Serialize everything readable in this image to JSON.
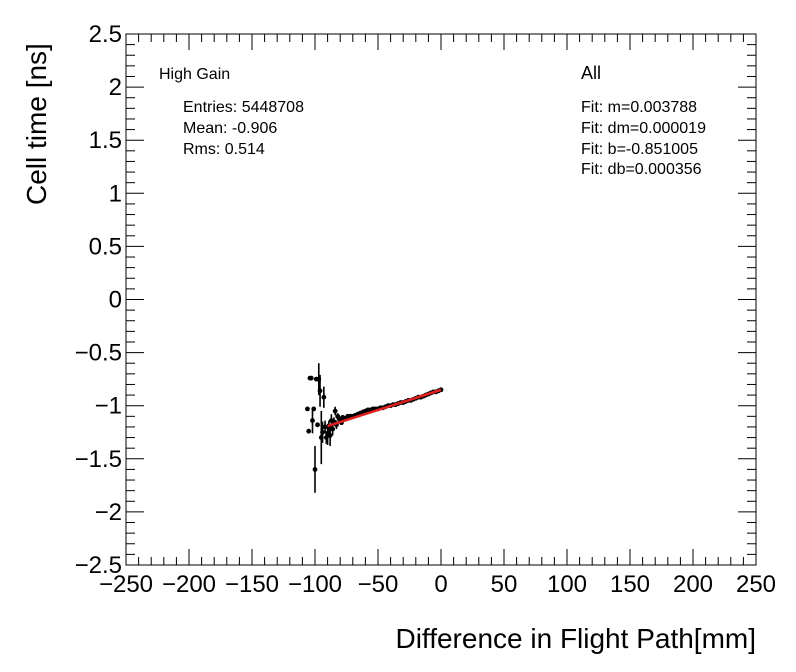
{
  "chart_data": {
    "type": "scatter",
    "xlabel": "Difference in Flight Path[mm]",
    "ylabel": "Cell time [ns]",
    "xlim": [
      -250,
      250
    ],
    "ylim": [
      -2.5,
      2.5
    ],
    "x_ticks": [
      "−250",
      "−200",
      "−150",
      "−100",
      "−50",
      "0",
      "50",
      "100",
      "150",
      "200",
      "250"
    ],
    "y_ticks": [
      "2.5",
      "2",
      "1.5",
      "1",
      "0.5",
      "0",
      "−0.5",
      "−1",
      "−1.5",
      "−2",
      "−2.5"
    ],
    "grid": false,
    "legend": "none",
    "annotations": {
      "gain": "High Gain",
      "entries": "Entries: 5448708",
      "mean": "Mean: -0.906",
      "rms": "Rms: 0.514",
      "selection": "All",
      "fit_m": "Fit: m=0.003788",
      "fit_dm": "Fit: dm=0.000019",
      "fit_b": "Fit: b=-0.851005",
      "fit_db": "Fit: db=0.000356"
    },
    "points": {
      "x": [
        -106,
        -105,
        -104,
        -103,
        -102,
        -101,
        -100,
        -99,
        -98,
        -97,
        -96,
        -95,
        -94,
        -93,
        -92,
        -91,
        -90,
        -89,
        -88,
        -87,
        -86,
        -85,
        -84,
        -83,
        -82,
        -81,
        -80,
        -79,
        -78,
        -77,
        -76,
        -75,
        -74,
        -73,
        -72,
        -71,
        -70,
        -68,
        -66,
        -64,
        -62,
        -60,
        -58,
        -56,
        -54,
        -52,
        -50,
        -48,
        -46,
        -44,
        -42,
        -40,
        -38,
        -36,
        -34,
        -32,
        -30,
        -28,
        -26,
        -24,
        -22,
        -20,
        -18,
        -16,
        -14,
        -12,
        -10,
        -8,
        -6,
        -4,
        -2,
        0
      ],
      "y": [
        -1.03,
        -1.24,
        -0.74,
        -0.74,
        -1.14,
        -1.03,
        -1.6,
        -0.75,
        -1.18,
        -0.75,
        -0.86,
        -1.3,
        -1.25,
        -0.92,
        -1.2,
        -1.3,
        -1.27,
        -1.2,
        -1.28,
        -1.14,
        -1.22,
        -1.15,
        -1.05,
        -1.18,
        -1.1,
        -1.12,
        -1.14,
        -1.16,
        -1.11,
        -1.13,
        -1.12,
        -1.12,
        -1.1,
        -1.11,
        -1.1,
        -1.1,
        -1.1,
        -1.09,
        -1.08,
        -1.07,
        -1.06,
        -1.05,
        -1.04,
        -1.04,
        -1.03,
        -1.03,
        -1.03,
        -1.02,
        -1.02,
        -1.01,
        -1.0,
        -1.0,
        -0.99,
        -0.99,
        -0.98,
        -0.97,
        -0.97,
        -0.96,
        -0.95,
        -0.95,
        -0.94,
        -0.93,
        -0.92,
        -0.92,
        -0.91,
        -0.9,
        -0.89,
        -0.88,
        -0.87,
        -0.87,
        -0.86,
        -0.85
      ],
      "yerr": [
        0.0,
        0.0,
        0.0,
        0.0,
        0.12,
        0.0,
        0.22,
        0.0,
        0.0,
        0.15,
        0.15,
        0.25,
        0.1,
        0.1,
        0.06,
        0.06,
        0.1,
        0.06,
        0.1,
        0.06,
        0.06,
        0.04,
        0.04,
        0.04,
        0.03,
        0.03,
        0.02,
        0.02,
        0.02,
        0.02,
        0.01,
        0.01,
        0.01,
        0.01,
        0.01,
        0.01,
        0.01,
        0.01,
        0.01,
        0.01,
        0.01,
        0.01,
        0.01,
        0.01,
        0.01,
        0.01,
        0.01,
        0.01,
        0.01,
        0.01,
        0.01,
        0.01,
        0.01,
        0.01,
        0.01,
        0.01,
        0.01,
        0.01,
        0.01,
        0.01,
        0.01,
        0.01,
        0.01,
        0.01,
        0.01,
        0.01,
        0.01,
        0.01,
        0.01,
        0.01,
        0.01,
        0.01
      ]
    },
    "fit": {
      "m": 0.003788,
      "b": -0.851005,
      "x_range": [
        -90,
        0
      ],
      "color": "#e02020"
    },
    "colors": {
      "marker": "#000000",
      "fit": "#e02020",
      "frame": "#000000"
    }
  }
}
